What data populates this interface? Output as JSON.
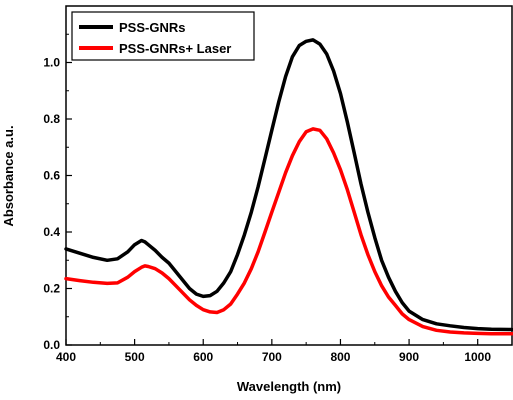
{
  "chart_data": {
    "type": "line",
    "title": "",
    "xlabel": "Wavelength (nm)",
    "ylabel": "Absorbance a.u.",
    "xlim": [
      400,
      1050
    ],
    "ylim": [
      0.0,
      1.2
    ],
    "x_ticks": [
      400,
      500,
      600,
      700,
      800,
      900,
      1000
    ],
    "x_tick_labels": [
      "400",
      "500",
      "600",
      "700",
      "800",
      "900",
      "1000"
    ],
    "y_ticks": [
      0.0,
      0.2,
      0.4,
      0.6,
      0.8,
      1.0
    ],
    "y_tick_labels": [
      "0.0",
      "0.2",
      "0.4",
      "0.6",
      "0.8",
      "1.0"
    ],
    "grid": false,
    "legend_position": "top-left",
    "series": [
      {
        "name": "PSS-GNRs",
        "color": "#000000",
        "x": [
          400,
          420,
          440,
          460,
          475,
          490,
          500,
          510,
          515,
          520,
          530,
          540,
          550,
          560,
          570,
          580,
          590,
          600,
          610,
          620,
          630,
          640,
          650,
          660,
          670,
          680,
          690,
          700,
          710,
          720,
          730,
          740,
          750,
          760,
          770,
          780,
          790,
          800,
          810,
          820,
          830,
          840,
          850,
          860,
          870,
          880,
          890,
          900,
          920,
          940,
          960,
          980,
          1000,
          1020,
          1050
        ],
        "y": [
          0.34,
          0.325,
          0.31,
          0.3,
          0.305,
          0.33,
          0.355,
          0.37,
          0.365,
          0.355,
          0.335,
          0.31,
          0.29,
          0.26,
          0.23,
          0.2,
          0.18,
          0.172,
          0.175,
          0.19,
          0.22,
          0.26,
          0.32,
          0.39,
          0.47,
          0.56,
          0.66,
          0.76,
          0.86,
          0.95,
          1.02,
          1.06,
          1.075,
          1.08,
          1.065,
          1.03,
          0.97,
          0.89,
          0.79,
          0.68,
          0.57,
          0.47,
          0.38,
          0.3,
          0.24,
          0.19,
          0.15,
          0.12,
          0.09,
          0.075,
          0.068,
          0.062,
          0.058,
          0.056,
          0.055
        ]
      },
      {
        "name": "PSS-GNRs+ Laser",
        "color": "#ff0000",
        "x": [
          400,
          420,
          440,
          460,
          475,
          490,
          500,
          510,
          515,
          520,
          530,
          540,
          550,
          560,
          570,
          580,
          590,
          600,
          610,
          620,
          630,
          640,
          650,
          660,
          670,
          680,
          690,
          700,
          710,
          720,
          730,
          740,
          750,
          760,
          770,
          780,
          790,
          800,
          810,
          820,
          830,
          840,
          850,
          860,
          870,
          880,
          890,
          900,
          920,
          940,
          960,
          980,
          1000,
          1020,
          1050
        ],
        "y": [
          0.235,
          0.228,
          0.222,
          0.218,
          0.22,
          0.24,
          0.26,
          0.275,
          0.28,
          0.278,
          0.27,
          0.255,
          0.235,
          0.21,
          0.185,
          0.16,
          0.14,
          0.125,
          0.117,
          0.115,
          0.125,
          0.145,
          0.18,
          0.22,
          0.27,
          0.33,
          0.4,
          0.47,
          0.54,
          0.61,
          0.67,
          0.72,
          0.755,
          0.765,
          0.76,
          0.73,
          0.68,
          0.62,
          0.55,
          0.47,
          0.39,
          0.32,
          0.26,
          0.21,
          0.17,
          0.14,
          0.11,
          0.09,
          0.065,
          0.052,
          0.046,
          0.043,
          0.041,
          0.04,
          0.04
        ]
      }
    ]
  }
}
